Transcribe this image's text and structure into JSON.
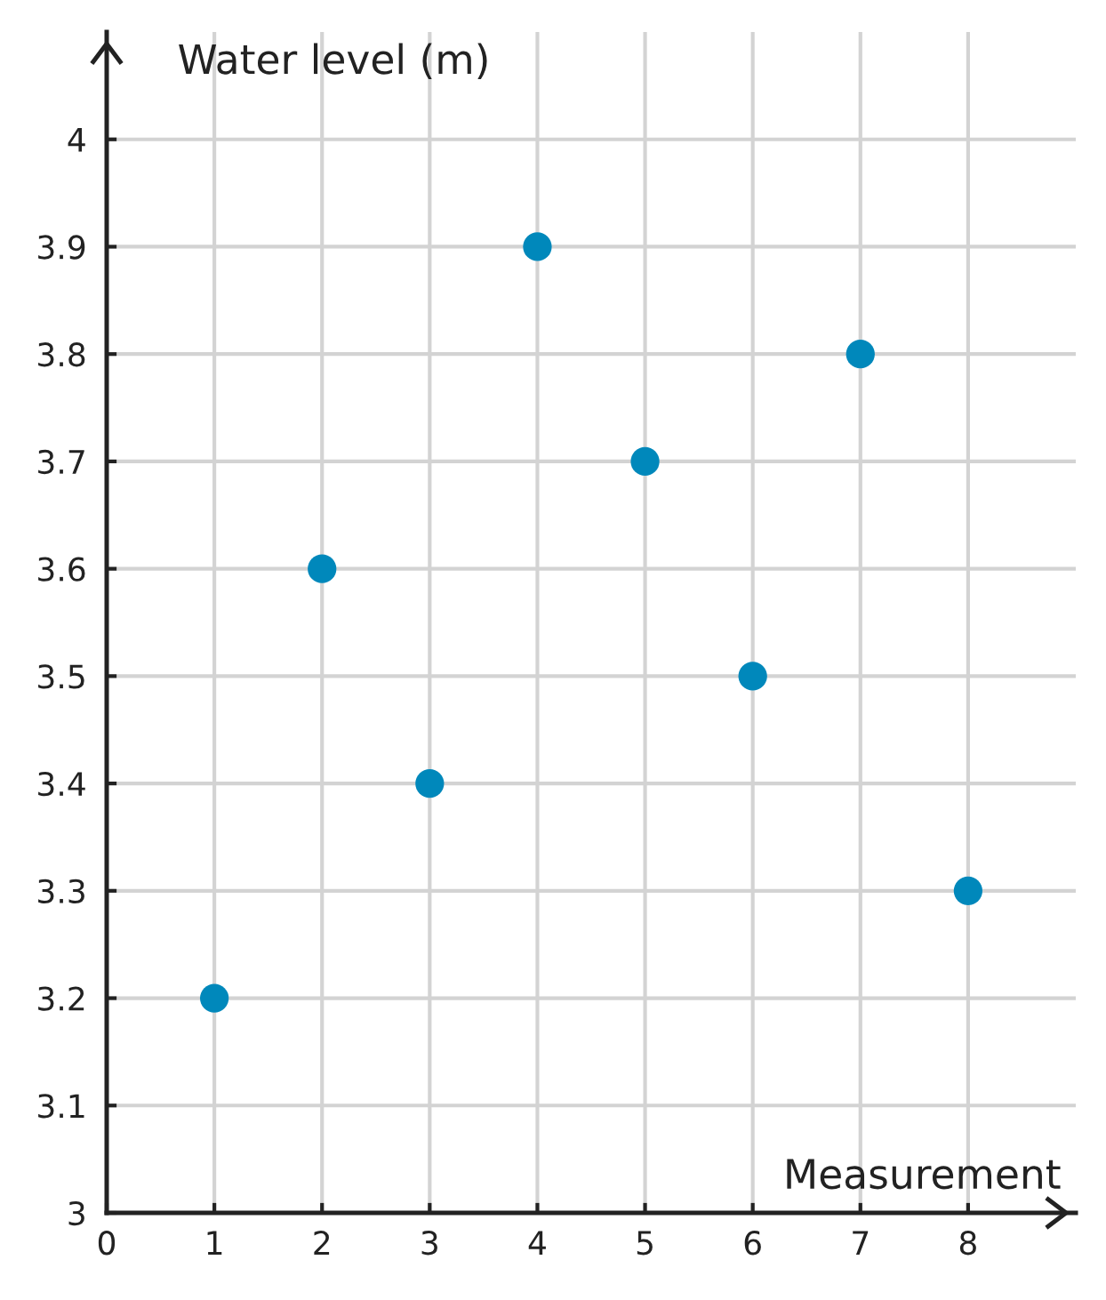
{
  "chart_data": {
    "type": "scatter",
    "xlabel": "Measurement",
    "ylabel": "Water level (m)",
    "x": [
      1,
      2,
      3,
      4,
      5,
      6,
      7,
      8
    ],
    "series": [
      {
        "color": "#0088bb",
        "values": [
          3.2,
          3.6,
          3.4,
          3.9,
          3.7,
          3.5,
          3.8,
          3.3
        ]
      }
    ],
    "xlim": [
      0,
      9
    ],
    "ylim": [
      3,
      4.1
    ],
    "xticks": [
      0,
      1,
      2,
      3,
      4,
      5,
      6,
      7,
      8
    ],
    "yticks": [
      3,
      3.1,
      3.2,
      3.3,
      3.4,
      3.5,
      3.6,
      3.7,
      3.8,
      3.9,
      4
    ],
    "grid": true,
    "marker": "circle"
  }
}
